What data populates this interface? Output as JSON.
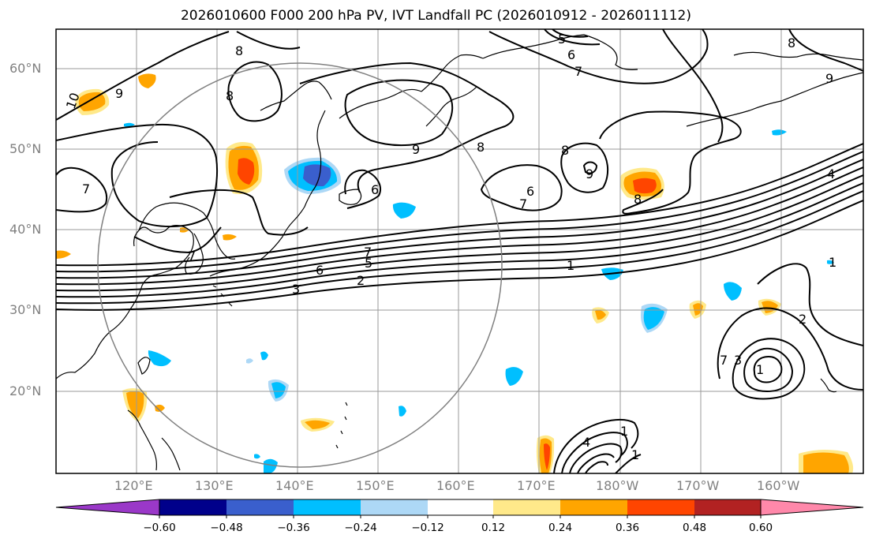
{
  "title": "2026010600 F000 200 hPa PV, IVT Landfall PC (2026010912 - 2026011112)",
  "map": {
    "lat_labels": [
      "60°N",
      "50°N",
      "40°N",
      "30°N",
      "20°N"
    ],
    "lon_labels": [
      "120°E",
      "130°E",
      "140°E",
      "150°E",
      "160°E",
      "170°E",
      "180°W",
      "170°W",
      "160°W"
    ],
    "contour_labels": [
      "10",
      "9",
      "8",
      "5",
      "6",
      "7",
      "8",
      "9",
      "7",
      "8",
      "6",
      "9",
      "8",
      "8",
      "6",
      "7",
      "9",
      "8",
      "4",
      "7",
      "1",
      "7",
      "6",
      "5",
      "3",
      "2",
      "2",
      "1",
      "1",
      "4",
      "1",
      "7",
      "3",
      "1"
    ]
  },
  "colorbar": {
    "ticks": [
      "−0.60",
      "−0.48",
      "−0.36",
      "−0.24",
      "−0.12",
      "0.12",
      "0.24",
      "0.36",
      "0.48",
      "0.60"
    ],
    "colors": {
      "under": "#9a38c8",
      "c1": "#00008b",
      "c2": "#3a5fcd",
      "c3": "#00bfff",
      "c4": "#add8f6",
      "c5": "#ffffff",
      "c6": "#ffe98a",
      "c7": "#ffa500",
      "c8": "#ff4500",
      "c9": "#b22222",
      "over": "#ff88aa"
    }
  }
}
